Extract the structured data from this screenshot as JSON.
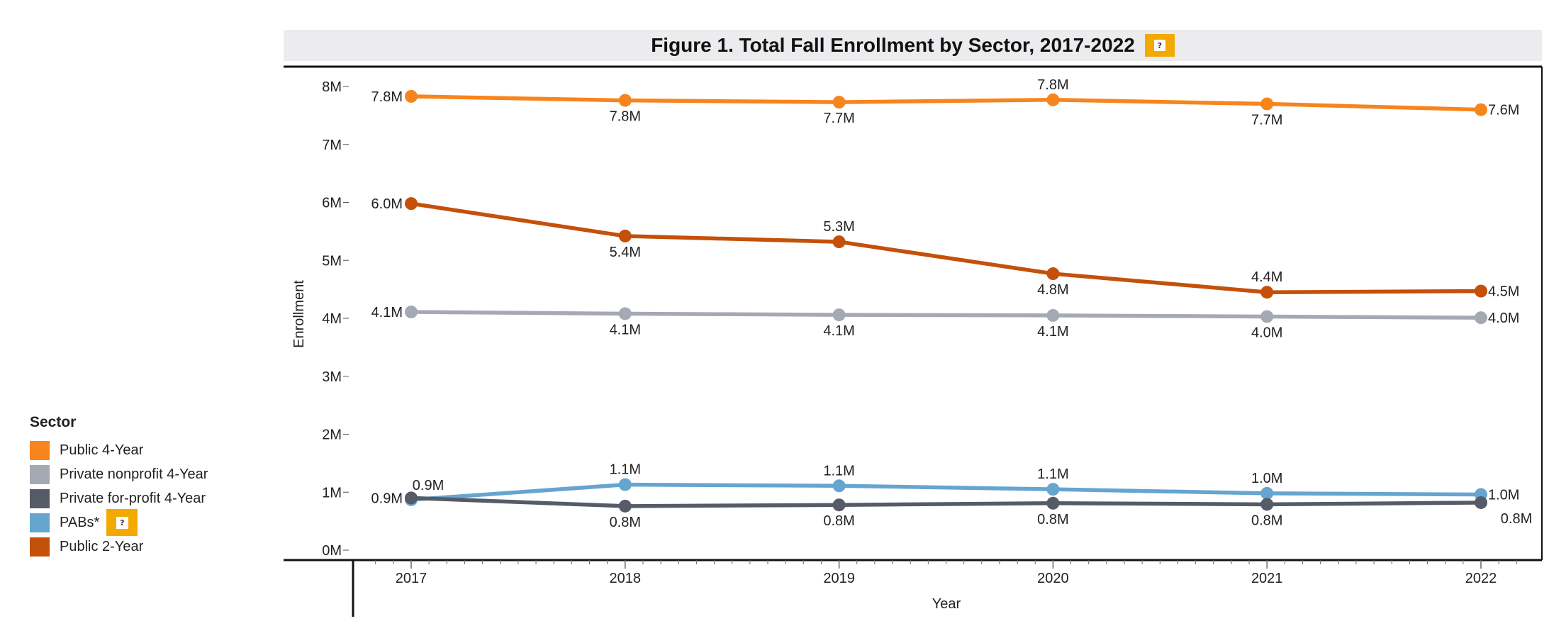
{
  "chart_data": {
    "type": "line",
    "title": "Figure 1. Total Fall Enrollment by Sector, 2017-2022",
    "xlabel": "Year",
    "ylabel": "Enrollment",
    "x": [
      "2017",
      "2018",
      "2019",
      "2020",
      "2021",
      "2022"
    ],
    "ylim": [
      0,
      8000000
    ],
    "y_ticks": [
      {
        "value": 0,
        "label": "0M"
      },
      {
        "value": 1000000,
        "label": "1M"
      },
      {
        "value": 2000000,
        "label": "2M"
      },
      {
        "value": 3000000,
        "label": "3M"
      },
      {
        "value": 4000000,
        "label": "4M"
      },
      {
        "value": 5000000,
        "label": "5M"
      },
      {
        "value": 6000000,
        "label": "6M"
      },
      {
        "value": 7000000,
        "label": "7M"
      },
      {
        "value": 8000000,
        "label": "8M"
      }
    ],
    "series": [
      {
        "key": "public-4-year",
        "name": "Public 4-Year",
        "color": "#f7841c",
        "values": [
          7830000,
          7760000,
          7730000,
          7770000,
          7700000,
          7600000
        ],
        "labels": [
          "7.8M",
          "7.8M",
          "7.7M",
          "7.8M",
          "7.7M",
          "7.6M"
        ],
        "label_pos": [
          "left",
          "below",
          "below",
          "above",
          "below",
          "right"
        ]
      },
      {
        "key": "public-2-year",
        "name": "Public 2-Year",
        "color": "#c4500a",
        "values": [
          5980000,
          5420000,
          5320000,
          4770000,
          4450000,
          4470000
        ],
        "labels": [
          "6.0M",
          "5.4M",
          "5.3M",
          "4.8M",
          "4.4M",
          "4.5M"
        ],
        "label_pos": [
          "left",
          "below",
          "above",
          "below",
          "above",
          "right"
        ]
      },
      {
        "key": "private-nonprofit-4-year",
        "name": "Private nonprofit 4-Year",
        "color": "#a5a9b4",
        "values": [
          4110000,
          4080000,
          4060000,
          4050000,
          4030000,
          4010000
        ],
        "labels": [
          "4.1M",
          "4.1M",
          "4.1M",
          "4.1M",
          "4.0M",
          "4.0M"
        ],
        "label_pos": [
          "left",
          "below",
          "below",
          "below",
          "below",
          "right"
        ]
      },
      {
        "key": "pabs",
        "name": "PABs*",
        "color": "#65a5cf",
        "values": [
          870000,
          1130000,
          1110000,
          1050000,
          980000,
          960000
        ],
        "labels": [
          "0.9M",
          "1.1M",
          "1.1M",
          "1.1M",
          "1.0M",
          "1.0M"
        ],
        "label_pos": [
          "aboveright",
          "above",
          "above",
          "above",
          "above",
          "right"
        ]
      },
      {
        "key": "private-for-profit-4-year",
        "name": "Private for-profit 4-Year",
        "color": "#555b67",
        "values": [
          900000,
          760000,
          780000,
          810000,
          790000,
          820000
        ],
        "labels": [
          "0.9M",
          "0.8M",
          "0.8M",
          "0.8M",
          "0.8M",
          "0.8M"
        ],
        "label_pos": [
          "left",
          "below",
          "below",
          "below",
          "below",
          "belowright"
        ]
      }
    ]
  },
  "legend": {
    "title": "Sector",
    "items": [
      {
        "label": "Public 4-Year",
        "color": "#f7841c"
      },
      {
        "label": "Private nonprofit 4-Year",
        "color": "#a5a9b4"
      },
      {
        "label": "Private for-profit 4-Year",
        "color": "#555b67"
      },
      {
        "label": "PABs*",
        "color": "#65a5cf"
      },
      {
        "label": "Public 2-Year",
        "color": "#c4500a"
      }
    ]
  },
  "help_icon": {
    "glyph": "?",
    "color": "#f2a900"
  }
}
